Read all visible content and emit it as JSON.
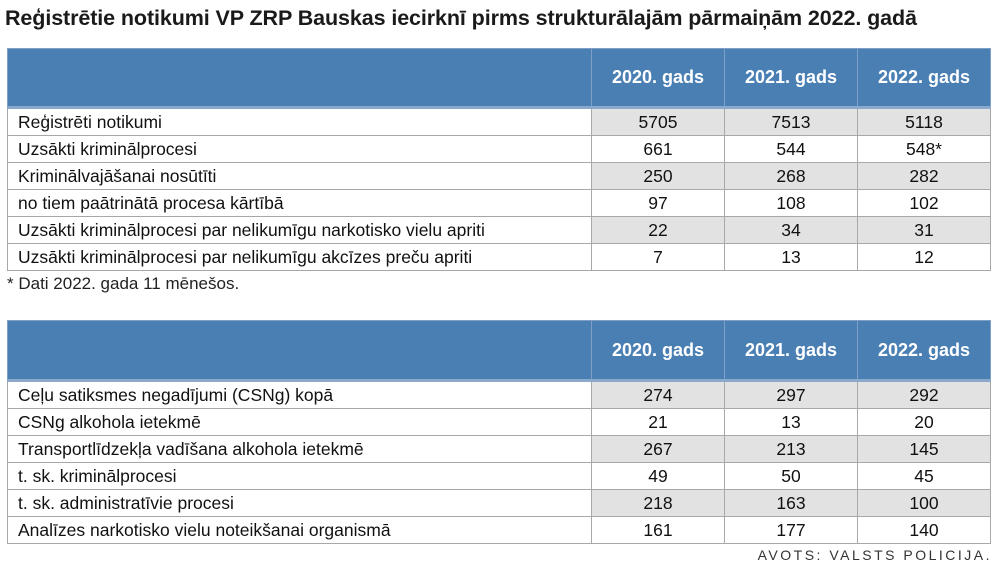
{
  "title": "Reģistrētie notikumi VP ZRP Bauskas iecirknī pirms strukturālajām pārmaiņām 2022. gadā",
  "table1": {
    "columns": [
      "2020. gads",
      "2021. gads",
      "2022. gads"
    ],
    "rows": [
      {
        "label": "Reģistrēti notikumi",
        "values": [
          "5705",
          "7513",
          "5118"
        ]
      },
      {
        "label": "Uzsākti kriminālprocesi",
        "values": [
          "661",
          "544",
          "548*"
        ]
      },
      {
        "label": "Kriminālvajāšanai nosūtīti",
        "values": [
          "250",
          "268",
          "282"
        ]
      },
      {
        "label": "no tiem paātrinātā procesa kārtībā",
        "values": [
          "97",
          "108",
          "102"
        ]
      },
      {
        "label": "Uzsākti kriminālprocesi par nelikumīgu narkotisko vielu apriti",
        "values": [
          "22",
          "34",
          "31"
        ]
      },
      {
        "label": "Uzsākti kriminālprocesi par nelikumīgu akcīzes preču apriti",
        "values": [
          "7",
          "13",
          "12"
        ]
      }
    ]
  },
  "footnote": "* Dati 2022. gada 11 mēnešos.",
  "table2": {
    "columns": [
      "2020. gads",
      "2021. gads",
      "2022. gads"
    ],
    "rows": [
      {
        "label": "Ceļu satiksmes negadījumi (CSNg) kopā",
        "values": [
          "274",
          "297",
          "292"
        ]
      },
      {
        "label": "CSNg alkohola ietekmē",
        "values": [
          "21",
          "13",
          "20"
        ]
      },
      {
        "label": "Transportlīdzekļa vadīšana alkohola ietekmē",
        "values": [
          "267",
          "213",
          "145"
        ]
      },
      {
        "label": "t. sk. kriminālprocesi",
        "values": [
          "49",
          "50",
          "45"
        ]
      },
      {
        "label": "t. sk. administratīvie procesi",
        "values": [
          "218",
          "163",
          "100"
        ]
      },
      {
        "label": "Analīzes narkotisko vielu noteikšanai organismā",
        "values": [
          "161",
          "177",
          "140"
        ]
      }
    ]
  },
  "source": "AVOTS: VALSTS POLICIJA."
}
